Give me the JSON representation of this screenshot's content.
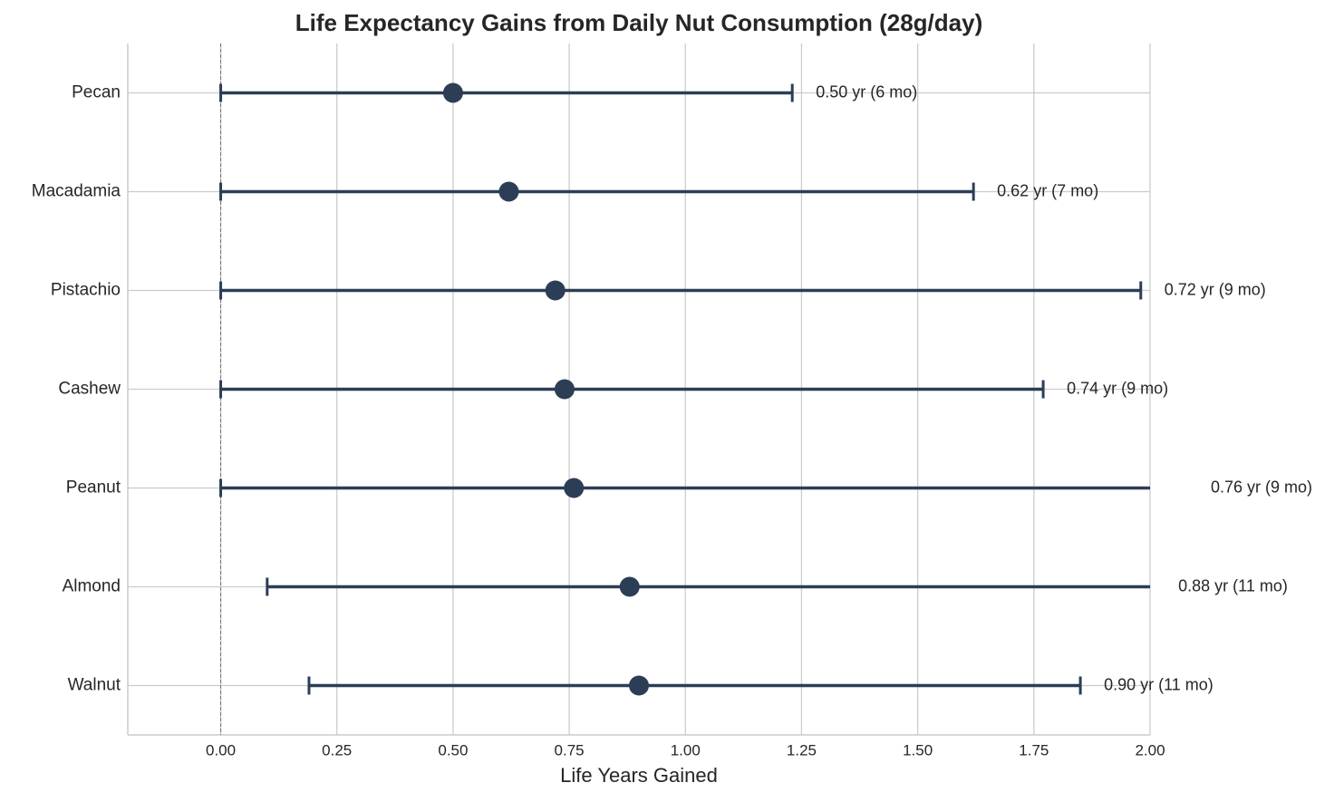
{
  "chart_data": {
    "type": "errorbar",
    "title": "Life Expectancy Gains from Daily Nut Consumption (28g/day)",
    "x_label": "Life Years Gained",
    "categories": [
      "Pecan",
      "Macadamia",
      "Pistachio",
      "Cashew",
      "Peanut",
      "Almond",
      "Walnut"
    ],
    "series": [
      {
        "color": "#2c3e55",
        "values": [
          0.5,
          0.62,
          0.72,
          0.74,
          0.76,
          0.88,
          0.9
        ],
        "lower": [
          0.0,
          0.0,
          0.0,
          0.0,
          0.0,
          0.1,
          0.19
        ],
        "upper": [
          1.23,
          1.62,
          1.98,
          1.77,
          2.08,
          2.01,
          1.85
        ],
        "value_labels": [
          "0.50 yr (6 mo)",
          "0.62 yr (7 mo)",
          "0.72 yr (9 mo)",
          "0.74 yr (9 mo)",
          "0.76 yr (9 mo)",
          "0.88 yr (11 mo)",
          "0.90 yr (11 mo)"
        ]
      }
    ],
    "xlim": [
      -0.2,
      2.0
    ],
    "xticks": [
      {
        "value": 0,
        "label": "0.00"
      },
      0.25,
      {
        "value": 0.5,
        "label": "0.50"
      },
      0.75,
      {
        "value": 1,
        "label": "1.00"
      },
      1.25,
      {
        "value": 1.5,
        "label": "1.50"
      },
      1.75,
      {
        "value": 2,
        "label": "2.00"
      }
    ],
    "reference_x": 0,
    "grid": true
  }
}
